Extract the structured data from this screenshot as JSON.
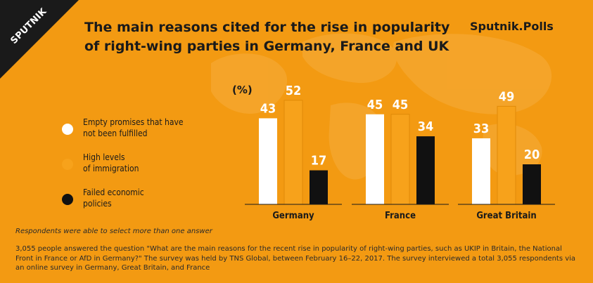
{
  "brand_name": "SPUTNIK",
  "brand_polls": "Sputnik.Polls",
  "colors": {
    "background": "#f39a12",
    "empty_promises": "#ffffff",
    "immigration": "#f7a21b",
    "economic": "#111111"
  },
  "chart_data": {
    "type": "bar",
    "title": "The main reasons cited  for the rise in popularity of right-wing parties in Germany, France and UK",
    "unit_label": "(%)",
    "categories": [
      "Germany",
      "France",
      "Great Britain"
    ],
    "series": [
      {
        "name": "Empty promises that have not been fulfilled",
        "values": [
          43,
          45,
          33
        ]
      },
      {
        "name": "High levels of immigration",
        "values": [
          52,
          45,
          49
        ]
      },
      {
        "name": "Failed economic policies",
        "values": [
          17,
          34,
          20
        ]
      }
    ],
    "ylim": [
      0,
      55
    ],
    "legend_position": "left"
  },
  "legend": [
    {
      "line1": "Empty promises that have",
      "line2": "not been fulfilled"
    },
    {
      "line1": "High levels",
      "line2": "of immigration"
    },
    {
      "line1": "Failed economic",
      "line2": "policies"
    }
  ],
  "note": "Respondents were able to select more than one answer",
  "footnote": "3,055 people answered the question \"What are the main reasons for the recent rise in popularity of right-wing parties, such as UKIP in Britain, the National Front in France or AfD in Germany?\" The survey was held by TNS Global, between February 16–22, 2017. The survey interviewed a total 3,055 respondents via an online survey in Germany, Great Britain, and France"
}
